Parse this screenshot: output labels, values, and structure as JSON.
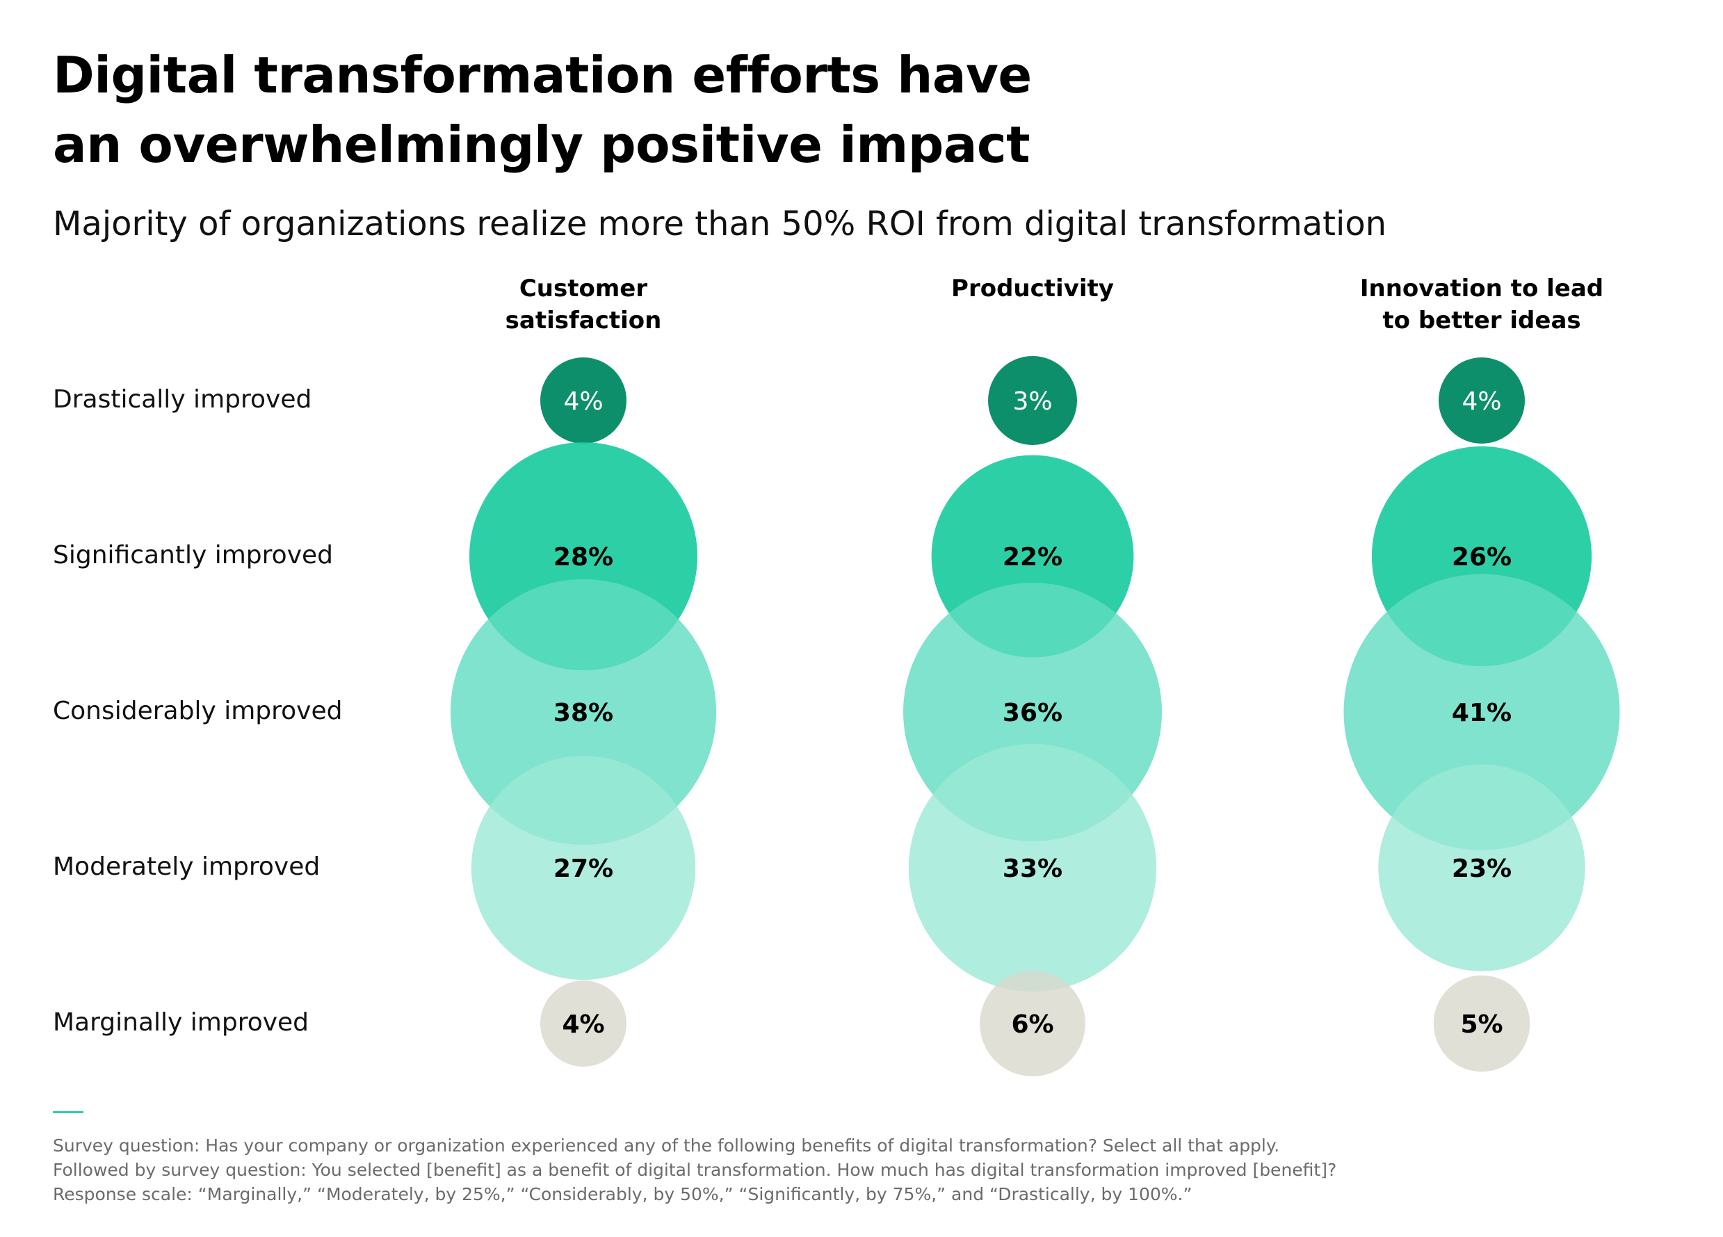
{
  "title_lines": [
    "Digital transformation efforts have",
    "an overwhelmingly positive impact"
  ],
  "subtitle": "Majority of organizations realize more than 50% ROI from digital transformation",
  "colors": {
    "drastically": "#0e8f6c",
    "significantly": "#10c99a",
    "considerably": "#5fdcc0",
    "moderately": "#9be8d6",
    "marginally": "#d8d8cc",
    "accent_line": "#2dcfaa"
  },
  "chart_data": {
    "type": "bubble",
    "categories": [
      {
        "label_lines": [
          "Customer",
          "satisfaction"
        ]
      },
      {
        "label_lines": [
          "Productivity"
        ]
      },
      {
        "label_lines": [
          "Innovation to lead",
          "to better ideas"
        ]
      }
    ],
    "rows": [
      "Drastically improved",
      "Significantly improved",
      "Considerably improved",
      "Moderately improved",
      "Marginally improved"
    ],
    "series": [
      {
        "values": [
          4,
          3,
          4
        ],
        "labels": [
          "4%",
          "3%",
          "4%"
        ]
      },
      {
        "values": [
          28,
          22,
          26
        ],
        "labels": [
          "28%",
          "22%",
          "26%"
        ]
      },
      {
        "values": [
          38,
          36,
          41
        ],
        "labels": [
          "38%",
          "36%",
          "41%"
        ]
      },
      {
        "values": [
          27,
          33,
          23
        ],
        "labels": [
          "27%",
          "33%",
          "23%"
        ]
      },
      {
        "values": [
          4,
          6,
          5
        ],
        "labels": [
          "4%",
          "6%",
          "5%"
        ]
      }
    ],
    "unit": "%"
  },
  "footnote_lines": [
    "Survey question: Has your company or organization experienced any of the following benefits of digital transformation? Select all that apply.",
    "Followed by survey question: You selected [benefit] as a benefit of digital transformation. How much has digital transformation improved [benefit]?",
    "Response scale: “Marginally,” “Moderately, by 25%,” “Considerably, by 50%,” “Significantly, by 75%,” and “Drastically, by 100%.”"
  ]
}
